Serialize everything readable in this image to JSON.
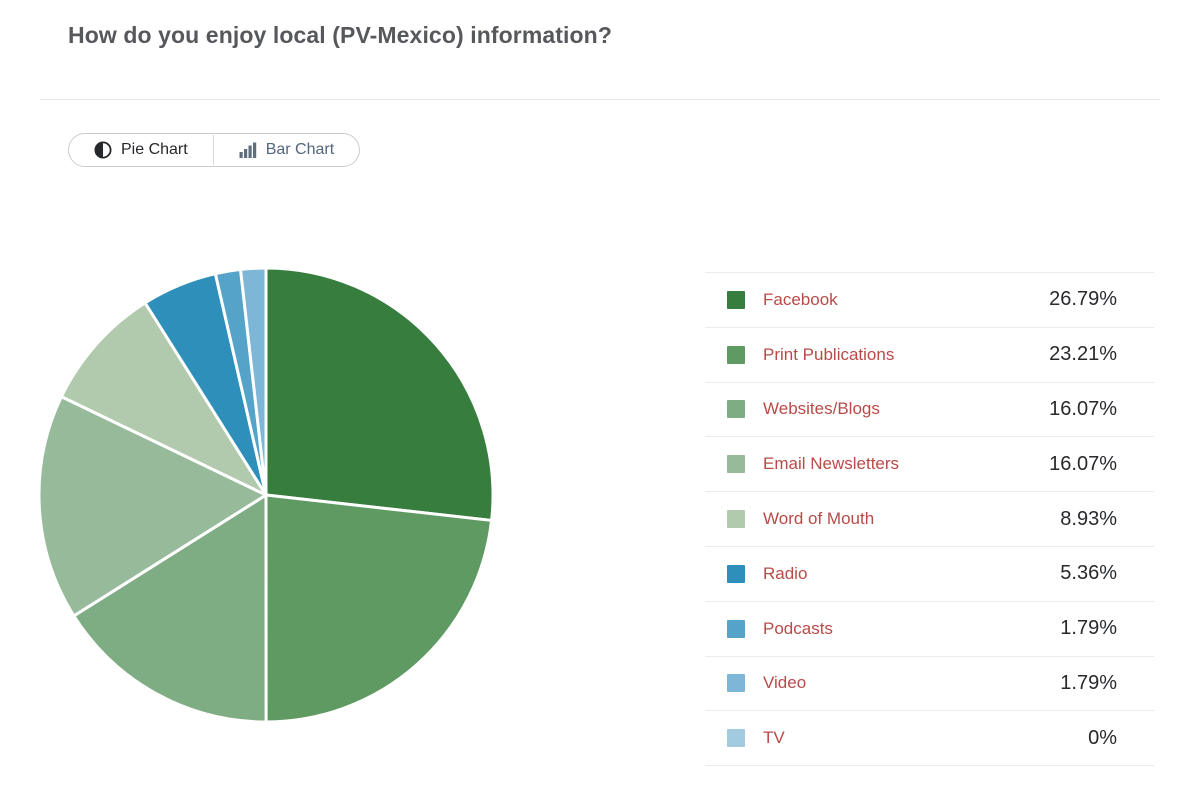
{
  "page": {
    "title": "How do you enjoy local (PV-Mexico) information?"
  },
  "toolbar": {
    "pie_chart_label": "Pie Chart",
    "bar_chart_label": "Bar Chart",
    "active_view": "Pie Chart"
  },
  "colors": {
    "active_button_text": "#26282b",
    "inactive_button_text": "#54657e",
    "legend_label_link": "#b94a47",
    "legend_value_text": "#27292c",
    "row_divider": "#ebebeb",
    "pie_slice_stroke": "#ffffff"
  },
  "chart_data": {
    "type": "pie",
    "title": "How do you enjoy local (PV-Mexico) information?",
    "direction": "clockwise",
    "start_angle_deg": 0,
    "legend_position": "right",
    "categories": [
      "Facebook",
      "Print Publications",
      "Websites/Blogs",
      "Email Newsletters",
      "Word of Mouth",
      "Radio",
      "Podcasts",
      "Video",
      "TV"
    ],
    "values": [
      26.79,
      23.21,
      16.07,
      16.07,
      8.93,
      5.36,
      1.79,
      1.79,
      0
    ],
    "display_values": [
      "26.79%",
      "23.21%",
      "16.07%",
      "16.07%",
      "8.93%",
      "5.36%",
      "1.79%",
      "1.79%",
      "0%"
    ],
    "slice_colors": [
      "#377e3e",
      "#5f9a62",
      "#7ead84",
      "#96ba9a",
      "#b1c9ad",
      "#2d8fba",
      "#55a3c8",
      "#7db6d6",
      "#a3cbe0"
    ]
  }
}
